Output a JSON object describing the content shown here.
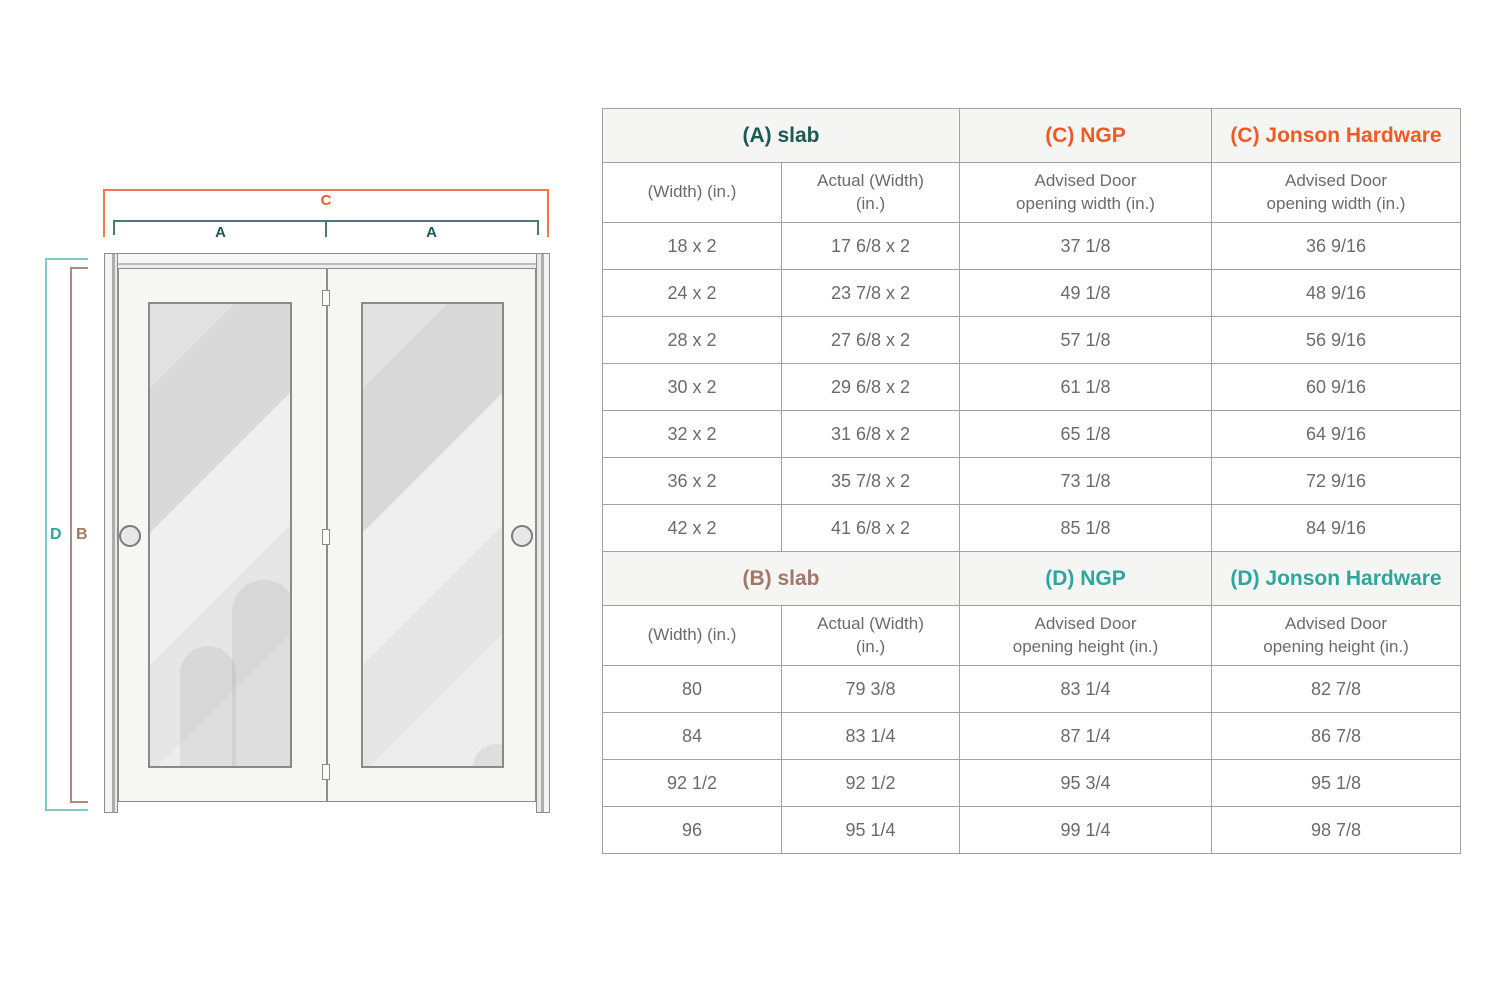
{
  "diagram": {
    "dimension_labels": {
      "c": "C",
      "a_left": "A",
      "a_right": "A",
      "d": "D",
      "b": "B"
    },
    "colors": {
      "orange": "#F15A24",
      "teal_dark": "#1D5A54",
      "teal": "#2BA79E",
      "teal_light": "#7FCBC4",
      "brown": "#A1776A"
    }
  },
  "table": {
    "sections": [
      {
        "group_headers": [
          {
            "label": "(A) slab",
            "color": "#1D5A54",
            "span": 2
          },
          {
            "label": "(C) NGP",
            "color": "#F15A24",
            "span": 1
          },
          {
            "label": "(C) Jonson Hardware",
            "color": "#F15A24",
            "span": 1
          }
        ],
        "column_headers": [
          "(Width) (in.)",
          "Actual (Width) (in.)",
          "Advised Door opening width (in.)",
          "Advised Door opening width (in.)"
        ],
        "rows": [
          [
            "18 x 2",
            "17 6/8 x 2",
            "37 1/8",
            "36 9/16"
          ],
          [
            "24 x 2",
            "23 7/8 x 2",
            "49 1/8",
            "48 9/16"
          ],
          [
            "28 x 2",
            "27 6/8 x 2",
            "57 1/8",
            "56 9/16"
          ],
          [
            "30 x 2",
            "29 6/8 x 2",
            "61 1/8",
            "60 9/16"
          ],
          [
            "32 x 2",
            "31 6/8 x 2",
            "65 1/8",
            "64 9/16"
          ],
          [
            "36 x 2",
            "35 7/8 x 2",
            "73 1/8",
            "72 9/16"
          ],
          [
            "42 x 2",
            "41 6/8 x 2",
            "85 1/8",
            "84 9/16"
          ]
        ]
      },
      {
        "group_headers": [
          {
            "label": "(B) slab",
            "color": "#A1776A",
            "span": 2
          },
          {
            "label": "(D) NGP",
            "color": "#2BA79E",
            "span": 1
          },
          {
            "label": "(D) Jonson Hardware",
            "color": "#2BA79E",
            "span": 1
          }
        ],
        "column_headers": [
          "(Width) (in.)",
          "Actual (Width) (in.)",
          "Advised Door opening height (in.)",
          "Advised Door opening height (in.)"
        ],
        "rows": [
          [
            "80",
            "79 3/8",
            "83 1/4",
            "82 7/8"
          ],
          [
            "84",
            "83 1/4",
            "87 1/4",
            "86 7/8"
          ],
          [
            "92 1/2",
            "92 1/2",
            "95 3/4",
            "95 1/8"
          ],
          [
            "96",
            "95 1/4",
            "99 1/4",
            "98 7/8"
          ]
        ]
      }
    ]
  }
}
